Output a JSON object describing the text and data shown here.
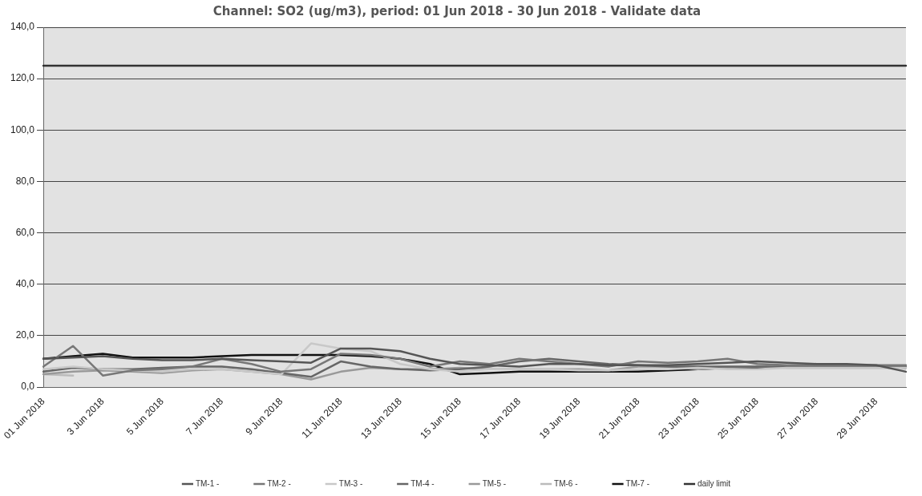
{
  "chart_data": {
    "type": "line",
    "title": "Channel: SO2 (ug/m3), period: 01 Jun 2018 - 30 Jun 2018 - Validate data",
    "categories": [
      "01 Jun 2018",
      null,
      "3 Jun 2018",
      null,
      "5 Jun 2018",
      null,
      "7 Jun 2018",
      null,
      "9 Jun 2018",
      null,
      "11 Jun 2018",
      null,
      "13 Jun 2018",
      null,
      "15 Jun 2018",
      null,
      "17 Jun 2018",
      null,
      "19 Jun 2018",
      null,
      "21 Jun 2018",
      null,
      "23 Jun 2018",
      null,
      "25 Jun 2018",
      null,
      "27 Jun 2018",
      null,
      "29 Jun 2018",
      null
    ],
    "series": [
      {
        "name": "TM-1 -",
        "color": "#555555",
        "values": [
          11,
          11.5,
          12,
          11,
          10.5,
          10.5,
          11,
          10.5,
          10,
          9.5,
          15,
          15,
          14,
          11,
          9,
          8.5,
          8,
          9,
          9,
          8.5,
          8.5,
          8.5,
          9,
          9.5,
          10,
          9.5,
          9,
          9,
          8.5,
          6
        ]
      },
      {
        "name": "TM-2 -",
        "color": "#777777",
        "values": [
          8,
          16,
          4.5,
          6.5,
          7,
          8,
          11,
          9,
          6,
          7,
          13,
          12.5,
          11,
          8,
          10,
          9,
          11,
          10,
          9,
          8,
          10,
          9.5,
          10,
          11,
          9,
          8.5,
          8.5,
          8.5,
          8.5,
          8.5
        ]
      },
      {
        "name": "TM-3 -",
        "color": "#c8c8c8",
        "values": [
          7,
          8,
          7,
          6.5,
          6,
          7,
          7,
          6,
          5,
          17,
          15,
          14,
          9,
          7,
          6,
          7,
          7,
          7,
          6.5,
          6.5,
          7,
          7,
          7.5,
          7,
          7,
          7.5,
          7.5,
          7.5,
          7.5,
          7.5
        ]
      },
      {
        "name": "TM-4 -",
        "color": "#666666",
        "values": [
          6,
          7.5,
          7,
          7,
          7.5,
          8,
          8,
          7,
          5.5,
          4,
          10,
          8,
          7,
          6.5,
          7,
          8,
          10,
          11,
          10,
          9,
          8.5,
          8,
          8,
          8,
          8,
          8,
          8,
          8,
          8,
          8
        ]
      },
      {
        "name": "TM-5 -",
        "color": "#999999",
        "values": [
          5,
          6,
          6.5,
          6,
          5.5,
          6.5,
          7,
          6,
          5,
          3,
          6,
          7.5,
          7,
          7,
          7.5,
          7,
          7,
          7,
          7,
          6.5,
          8,
          8,
          7,
          7.5,
          8,
          7.5,
          7.5,
          7.5,
          7.5,
          7.5
        ]
      },
      {
        "name": "TM-6 -",
        "color": "#bbbbbb",
        "values": [
          5,
          4.5,
          null,
          null,
          null,
          null,
          null,
          null,
          null,
          null,
          null,
          null,
          null,
          null,
          null,
          null,
          null,
          null,
          null,
          null,
          null,
          null,
          null,
          null,
          null,
          null,
          null,
          null,
          null,
          null
        ]
      },
      {
        "name": "TM-7 -",
        "color": "#111111",
        "values": [
          11,
          12,
          13,
          11.5,
          11.5,
          11.5,
          12,
          12.5,
          12.5,
          12.5,
          12.5,
          12,
          11,
          9,
          5,
          5.5,
          6,
          6,
          6,
          6,
          6,
          6.5,
          7,
          7.5,
          7.5,
          8,
          8,
          8,
          8,
          7.5
        ]
      },
      {
        "name": "daily limit",
        "color": "#333333",
        "values": [
          125,
          125,
          125,
          125,
          125,
          125,
          125,
          125,
          125,
          125,
          125,
          125,
          125,
          125,
          125,
          125,
          125,
          125,
          125,
          125,
          125,
          125,
          125,
          125,
          125,
          125,
          125,
          125,
          125,
          125
        ]
      }
    ],
    "ylim": [
      0,
      140
    ],
    "yticks": [
      {
        "value": 0,
        "label": "0,0"
      },
      {
        "value": 20,
        "label": "20,0"
      },
      {
        "value": 40,
        "label": "40,0"
      },
      {
        "value": 60,
        "label": "60,0"
      },
      {
        "value": 80,
        "label": "80,0"
      },
      {
        "value": 100,
        "label": "100,0"
      },
      {
        "value": 120,
        "label": "120,0"
      },
      {
        "value": 140,
        "label": "140,0"
      }
    ],
    "grid": "y",
    "legend": "bottom",
    "marker": "none",
    "line_style": "solid"
  }
}
